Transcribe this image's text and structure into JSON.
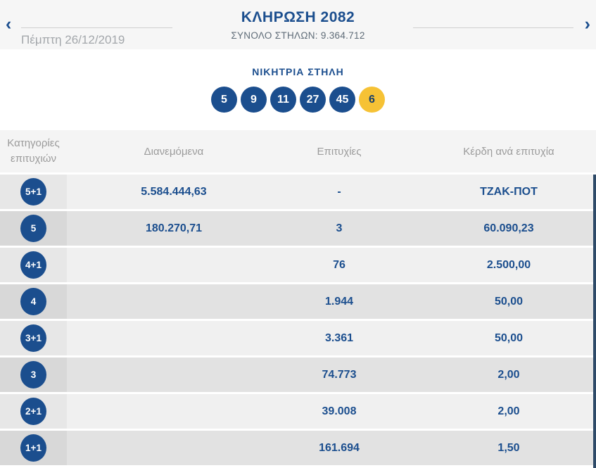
{
  "colors": {
    "navy": "#1b4e8e",
    "joker_yellow": "#f6c235",
    "joker_text": "#173f6b",
    "row_odd": "#f0f0f0",
    "row_even": "#e2e2e2",
    "strip": "#2e4a68"
  },
  "header": {
    "title": "ΚΛΗΡΩΣΗ 2082",
    "subtitle": "ΣΥΝΟΛΟ ΣΤΗΛΩΝ: 9.364.712",
    "date": "Πέμπτη 26/12/2019",
    "prev_icon": "‹",
    "next_icon": "›"
  },
  "winning": {
    "heading": "ΝΙΚΗΤΡΙΑ ΣΤΗΛΗ",
    "numbers": [
      "5",
      "9",
      "11",
      "27",
      "45"
    ],
    "joker": "6"
  },
  "table": {
    "headers": [
      "Κατηγορίες επιτυχιών",
      "Διανεμόμενα",
      "Επιτυχίες",
      "Κέρδη ανά επιτυχία"
    ],
    "rows": [
      {
        "category": "5+1",
        "distributed": "5.584.444,63",
        "winners": "-",
        "prize": "ΤΖΑΚ-ΠΟΤ"
      },
      {
        "category": "5",
        "distributed": "180.270,71",
        "winners": "3",
        "prize": "60.090,23"
      },
      {
        "category": "4+1",
        "distributed": "",
        "winners": "76",
        "prize": "2.500,00"
      },
      {
        "category": "4",
        "distributed": "",
        "winners": "1.944",
        "prize": "50,00"
      },
      {
        "category": "3+1",
        "distributed": "",
        "winners": "3.361",
        "prize": "50,00"
      },
      {
        "category": "3",
        "distributed": "",
        "winners": "74.773",
        "prize": "2,00"
      },
      {
        "category": "2+1",
        "distributed": "",
        "winners": "39.008",
        "prize": "2,00"
      },
      {
        "category": "1+1",
        "distributed": "",
        "winners": "161.694",
        "prize": "1,50"
      }
    ]
  }
}
